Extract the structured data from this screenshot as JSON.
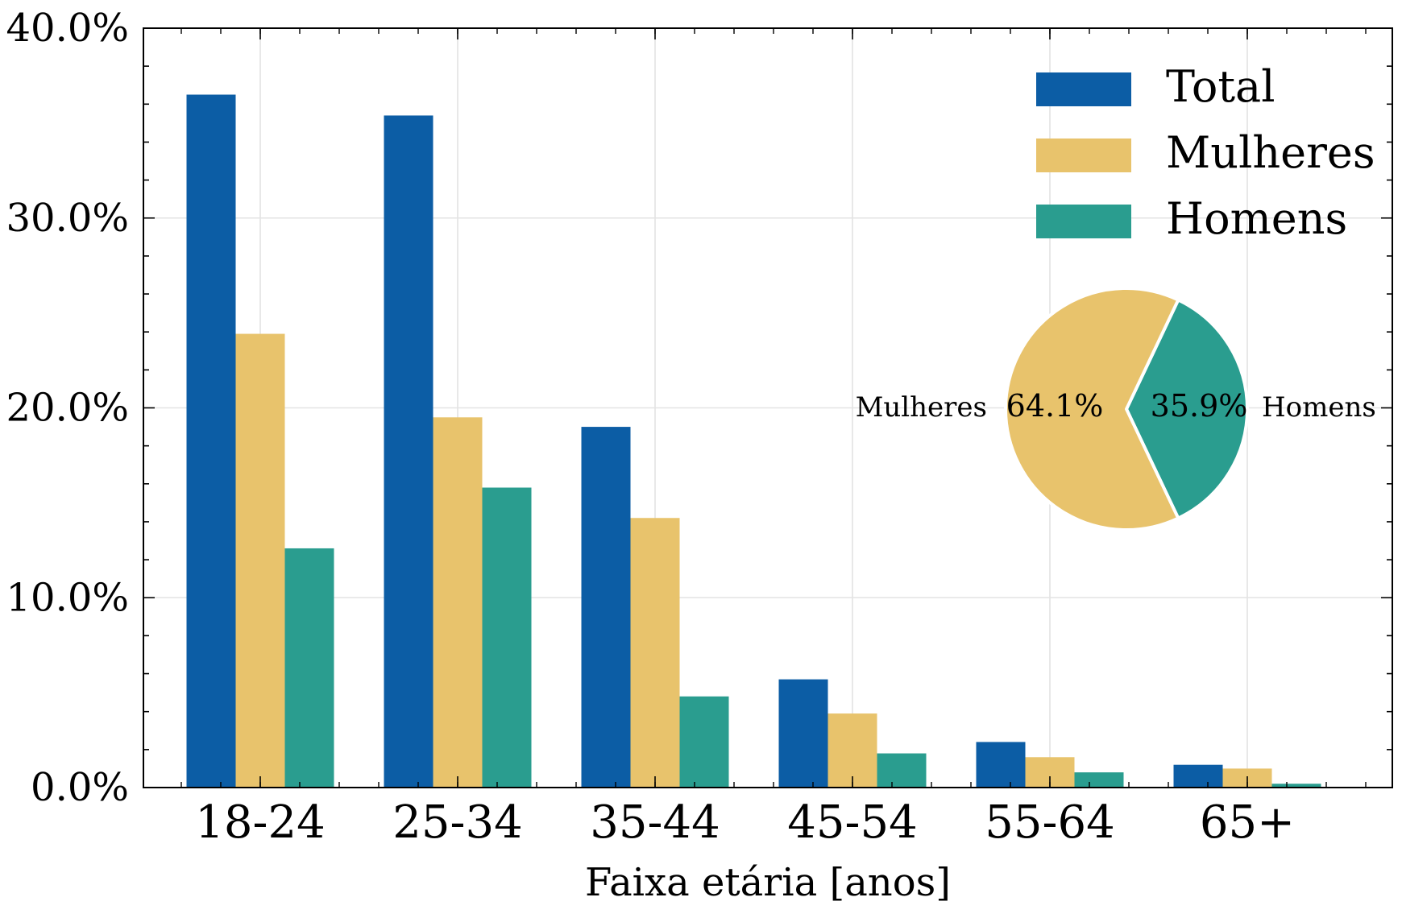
{
  "chart_data": [
    {
      "type": "bar",
      "xlabel": "Faixa etária [anos]",
      "ylabel": "",
      "ylim": [
        0,
        40
      ],
      "yticks": [
        "0.0%",
        "10.0%",
        "20.0%",
        "30.0%",
        "40.0%"
      ],
      "ytick_values": [
        0,
        10,
        20,
        30,
        40
      ],
      "categories": [
        "18-24",
        "25-34",
        "35-44",
        "45-54",
        "55-64",
        "65+"
      ],
      "grid": true,
      "legend": "top-right",
      "series": [
        {
          "name": "Total",
          "color": "#0c5da5",
          "values": [
            36.5,
            35.4,
            19.0,
            5.7,
            2.4,
            1.2
          ]
        },
        {
          "name": "Mulheres",
          "color": "#e8c36c",
          "values": [
            23.9,
            19.5,
            14.2,
            3.9,
            1.6,
            1.0
          ]
        },
        {
          "name": "Homens",
          "color": "#2a9d8f",
          "values": [
            12.6,
            15.8,
            4.8,
            1.8,
            0.8,
            0.2
          ]
        }
      ]
    },
    {
      "type": "pie",
      "slices": [
        {
          "label": "Mulheres",
          "value": 64.1,
          "pct_label": "64.1%",
          "color": "#e8c36c"
        },
        {
          "label": "Homens",
          "value": 35.9,
          "pct_label": "35.9%",
          "color": "#2a9d8f"
        }
      ]
    }
  ]
}
